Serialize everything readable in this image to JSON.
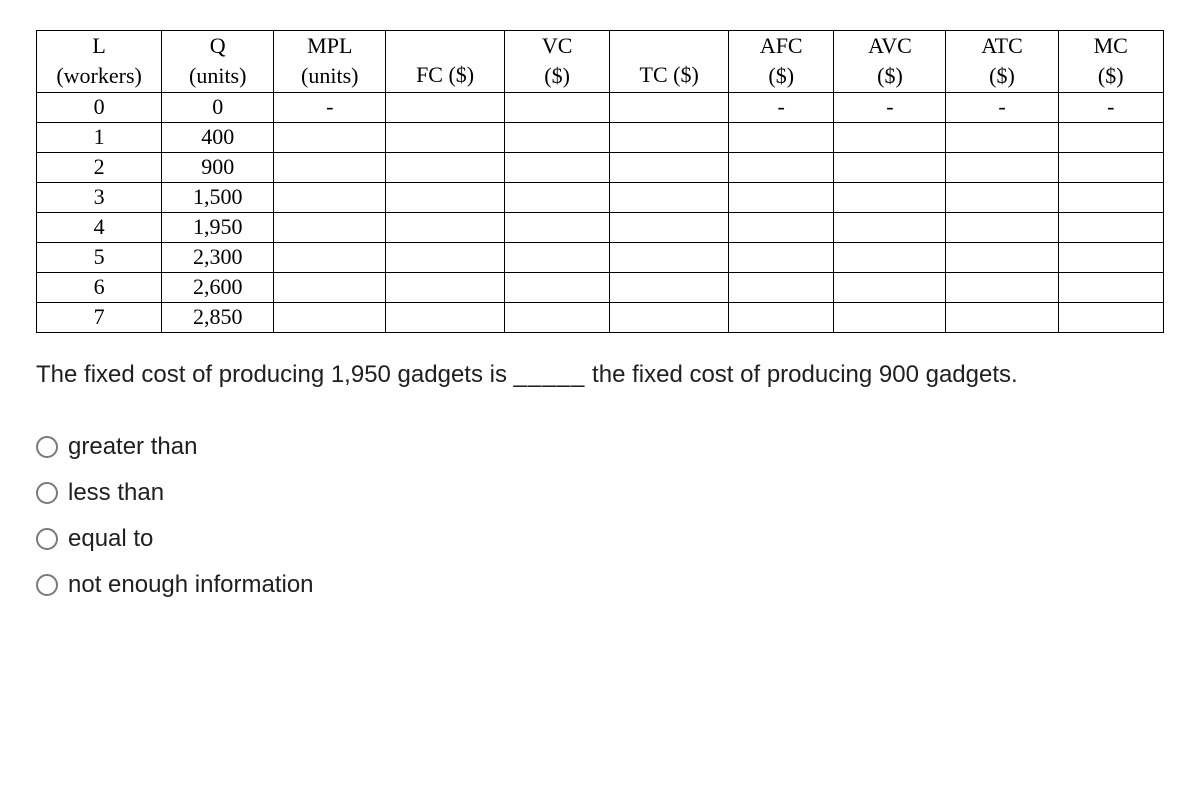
{
  "table": {
    "headers": [
      {
        "top": "L",
        "bottom": "(workers)"
      },
      {
        "top": "Q",
        "bottom": "(units)"
      },
      {
        "top": "MPL",
        "bottom": "(units)"
      },
      {
        "top": "",
        "bottom": "FC ($)"
      },
      {
        "top": "VC",
        "bottom": "($)"
      },
      {
        "top": "",
        "bottom": "TC ($)"
      },
      {
        "top": "AFC",
        "bottom": "($)"
      },
      {
        "top": "AVC",
        "bottom": "($)"
      },
      {
        "top": "ATC",
        "bottom": "($)"
      },
      {
        "top": "MC",
        "bottom": "($)"
      }
    ],
    "rows": [
      [
        "0",
        "0",
        "-",
        "",
        "",
        "",
        "-",
        "-",
        "-",
        "-"
      ],
      [
        "1",
        "400",
        "",
        "",
        "",
        "",
        "",
        "",
        "",
        ""
      ],
      [
        "2",
        "900",
        "",
        "",
        "",
        "",
        "",
        "",
        "",
        ""
      ],
      [
        "3",
        "1,500",
        "",
        "",
        "",
        "",
        "",
        "",
        "",
        ""
      ],
      [
        "4",
        "1,950",
        "",
        "",
        "",
        "",
        "",
        "",
        "",
        ""
      ],
      [
        "5",
        "2,300",
        "",
        "",
        "",
        "",
        "",
        "",
        "",
        ""
      ],
      [
        "6",
        "2,600",
        "",
        "",
        "",
        "",
        "",
        "",
        "",
        ""
      ],
      [
        "7",
        "2,850",
        "",
        "",
        "",
        "",
        "",
        "",
        "",
        ""
      ]
    ],
    "col_classes": [
      "col-L",
      "col-Q",
      "col-MPL",
      "col-FC",
      "col-VC",
      "col-TC",
      "col-AFC",
      "col-AVC",
      "col-ATC",
      "col-MC"
    ]
  },
  "question": {
    "part1": "The fixed cost of producing 1,950 gadgets is ",
    "blank": "_____",
    "part2": " the fixed cost of producing 900 gadgets."
  },
  "options": [
    "greater than",
    "less than",
    "equal to",
    "not enough information"
  ],
  "styling": {
    "background_color": "#ffffff",
    "table_border_color": "#000000",
    "text_color": "#202020",
    "radio_border_color": "#7a7a7a",
    "table_font": "Times New Roman",
    "body_font": "Arial",
    "table_fontsize": 22,
    "body_fontsize": 24
  }
}
